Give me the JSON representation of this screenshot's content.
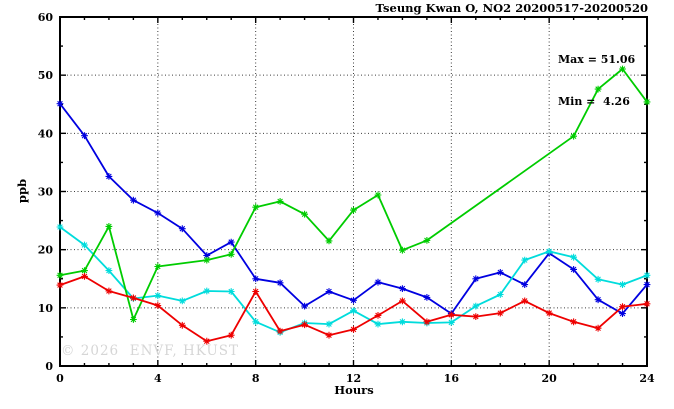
{
  "header": {
    "title": "Tseung Kwan O, NO2 20200517-20200520"
  },
  "annotation": {
    "max_label": "Max = 51.06",
    "min_label": "Min =  4.26"
  },
  "watermark": "© 2026  ENVF, HKUST",
  "chart_data": {
    "type": "line",
    "title": "Tseung Kwan O, NO2 20200517-20200520",
    "xlabel": "Hours",
    "ylabel": "ppb",
    "xlim": [
      0,
      24
    ],
    "ylim": [
      0,
      60
    ],
    "x_major_ticks": [
      0,
      4,
      8,
      12,
      16,
      20,
      24
    ],
    "x_minor_tick_step": 1,
    "y_major_ticks": [
      0,
      10,
      20,
      30,
      40,
      50,
      60
    ],
    "y_minor_tick_step": 5,
    "grid": "dotted-at-major-ticks",
    "legend_position": "none",
    "max_value": 51.06,
    "min_value": 4.26,
    "x": [
      0,
      1,
      2,
      3,
      4,
      5,
      6,
      7,
      8,
      9,
      10,
      11,
      12,
      13,
      14,
      15,
      16,
      17,
      18,
      19,
      20,
      21,
      22,
      23,
      24
    ],
    "series": [
      {
        "name": "blue-series",
        "color": "#0000e0",
        "marker": "asterisk",
        "values": [
          45.1,
          39.6,
          32.6,
          28.5,
          26.3,
          23.6,
          19.0,
          21.3,
          15.0,
          14.3,
          10.3,
          12.8,
          11.3,
          14.4,
          13.3,
          11.8,
          9.0,
          15.0,
          16.1,
          14.0,
          19.4,
          16.6,
          11.4,
          9.0,
          14.0
        ]
      },
      {
        "name": "cyan-series",
        "color": "#00dcdc",
        "marker": "asterisk",
        "values": [
          23.9,
          20.8,
          16.4,
          11.6,
          12.1,
          11.2,
          12.9,
          12.8,
          7.6,
          5.8,
          7.4,
          7.2,
          9.5,
          7.2,
          7.6,
          7.4,
          7.5,
          10.3,
          12.3,
          18.2,
          19.7,
          18.7,
          14.9,
          14.0,
          15.6
        ]
      },
      {
        "name": "green-series",
        "color": "#00cc00",
        "marker": "asterisk",
        "values": [
          15.6,
          16.4,
          24.0,
          8.0,
          17.1,
          null,
          18.2,
          19.2,
          27.3,
          28.3,
          26.1,
          21.5,
          26.8,
          29.4,
          19.9,
          21.6,
          null,
          null,
          null,
          null,
          null,
          39.5,
          47.6,
          51.06,
          45.4
        ]
      },
      {
        "name": "red-series",
        "color": "#ee0000",
        "marker": "asterisk",
        "values": [
          13.9,
          15.4,
          12.9,
          11.7,
          10.4,
          7.0,
          4.26,
          5.3,
          12.8,
          6.0,
          7.1,
          5.3,
          6.3,
          8.7,
          11.2,
          7.6,
          8.8,
          8.5,
          9.1,
          11.2,
          9.1,
          7.6,
          6.5,
          10.2,
          10.7
        ]
      }
    ]
  }
}
